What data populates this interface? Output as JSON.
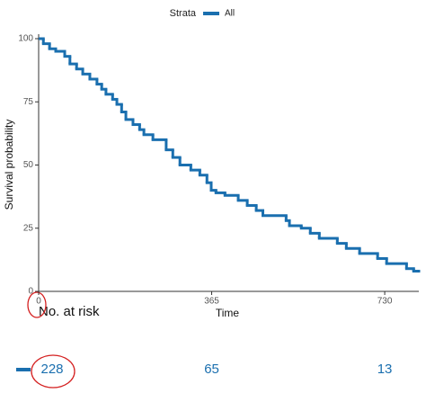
{
  "chart_data": {
    "type": "step",
    "legend_title": "Strata",
    "xlabel": "Time",
    "ylabel": "Survival probability",
    "xlim": [
      0,
      800
    ],
    "ylim": [
      0,
      100
    ],
    "xticks": [
      0,
      365,
      730
    ],
    "yticks": [
      0,
      25,
      50,
      75,
      100
    ],
    "series": [
      {
        "name": "All",
        "color": "#1a6faf",
        "x": [
          0,
          10,
          23,
          36,
          55,
          66,
          80,
          93,
          108,
          123,
          133,
          142,
          156,
          165,
          175,
          184,
          199,
          213,
          222,
          241,
          269,
          283,
          298,
          321,
          340,
          355,
          364,
          374,
          393,
          421,
          440,
          459,
          473,
          522,
          529,
          554,
          573,
          592,
          630,
          649,
          677,
          715,
          734,
          776,
          791,
          800
        ],
        "values": [
          100,
          98,
          96,
          95,
          93,
          90,
          88,
          86,
          84,
          82,
          80,
          78,
          76,
          74,
          71,
          68,
          66,
          64,
          62,
          60,
          56,
          53,
          50,
          48,
          46,
          43,
          40,
          39,
          38,
          36,
          34,
          32,
          30,
          28,
          26,
          25,
          23,
          21,
          19,
          17,
          15,
          13,
          11,
          9,
          8,
          8
        ]
      }
    ],
    "risk_table": {
      "title": "No. at risk",
      "counts": [
        228,
        65,
        13
      ]
    }
  }
}
